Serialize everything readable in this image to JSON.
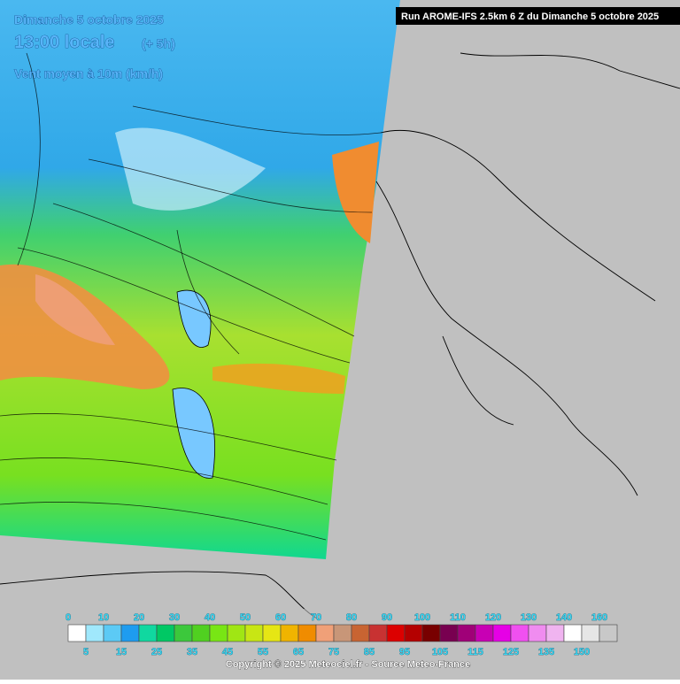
{
  "header": {
    "date": "Dimanche 5 octobre 2025",
    "time": "13:00 locale",
    "offset": "(+ 5h)",
    "variable": "Vent moyen à 10m (km/h)"
  },
  "run_banner": "Run AROME-IFS 2.5km 6 Z du Dimanche 5 octobre 2025",
  "legend": {
    "top_labels": [
      0,
      10,
      20,
      30,
      40,
      50,
      60,
      70,
      80,
      90,
      100,
      110,
      120,
      130,
      140,
      160
    ],
    "bottom_labels": [
      5,
      15,
      25,
      35,
      45,
      55,
      65,
      75,
      85,
      95,
      105,
      115,
      125,
      135,
      150
    ],
    "colors": [
      "#ffffff",
      "#a0e8fc",
      "#5ccaf5",
      "#1e9cf0",
      "#10d8a0",
      "#00c864",
      "#3cc83c",
      "#50d020",
      "#78e614",
      "#a0e614",
      "#c8e614",
      "#e6e614",
      "#f0b400",
      "#f08c00",
      "#f0a078",
      "#c89678",
      "#c86432",
      "#c83232",
      "#dc0000",
      "#b40000",
      "#780000",
      "#780050",
      "#a00078",
      "#c800b4",
      "#e600e6",
      "#f050f0",
      "#f08cf0",
      "#f0b4f0",
      "#ffffff",
      "#e6e6e6",
      "#c8c8c8"
    ]
  },
  "copyright": "Copyright © 2025 Meteociel.fr - Source Meteo-France"
}
